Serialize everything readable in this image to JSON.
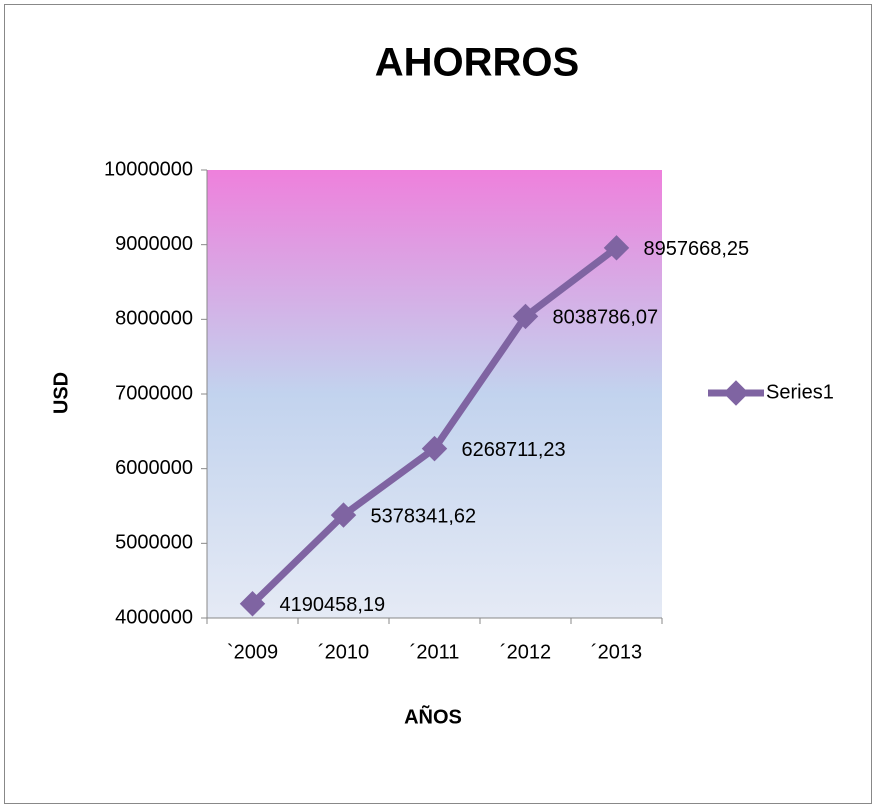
{
  "chart_data": {
    "type": "line",
    "title": "AHORROS",
    "x_label": "AÑOS",
    "y_label": "USD",
    "categories": [
      "`2009",
      "´2010",
      "´2011",
      "´2012",
      "´2013"
    ],
    "series": [
      {
        "name": "Series1",
        "color": "#7f64a2",
        "values": [
          4190458.19,
          5378341.62,
          6268711.23,
          8038786.07,
          8957668.25
        ],
        "value_labels": [
          "4190458,19",
          "5378341,62",
          "6268711,23",
          "8038786,07",
          "8957668,25"
        ]
      }
    ],
    "ylim": [
      4000000,
      10000000
    ],
    "yticks": [
      4000000,
      5000000,
      6000000,
      7000000,
      8000000,
      9000000,
      10000000
    ],
    "legend": "right"
  }
}
